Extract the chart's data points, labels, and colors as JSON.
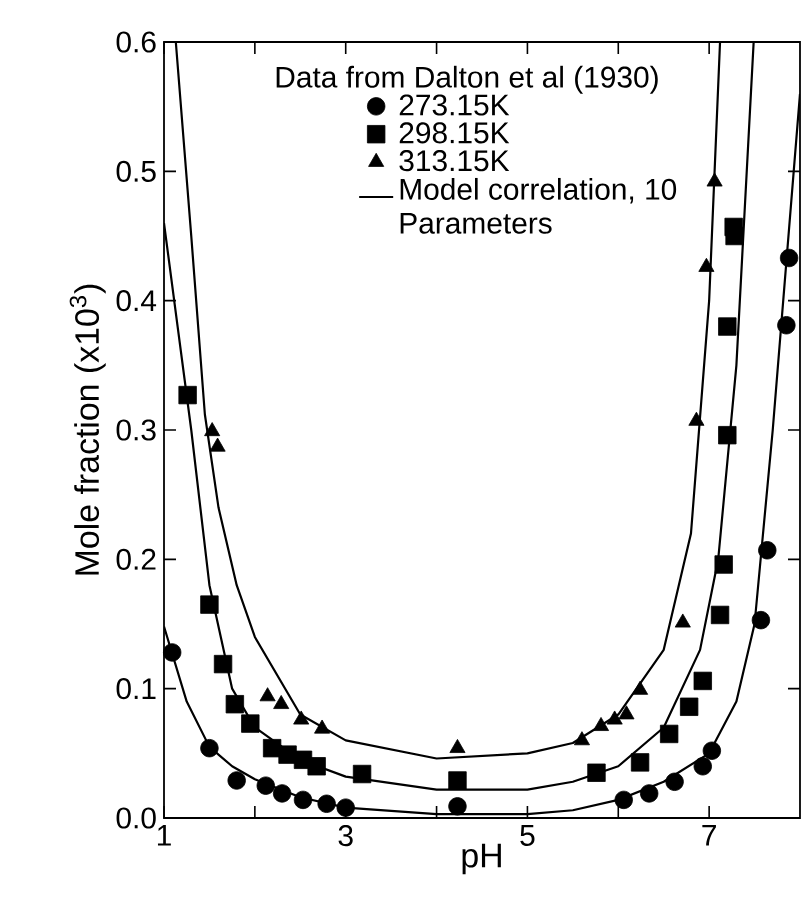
{
  "chart_data": {
    "type": "scatter",
    "xlabel": "pH",
    "ylabel": "Mole fraction (x10$^{3}$)",
    "legend_title": "Data from Dalton et al (1930)",
    "legend": "top",
    "line_style": "solid",
    "xlim": [
      1,
      8
    ],
    "ylim": [
      0,
      0.6
    ],
    "xticks": [
      1,
      {
        "value": 2,
        "label": null
      },
      3,
      {
        "value": 4,
        "label": null
      },
      5,
      {
        "value": 6,
        "label": null
      },
      7
    ],
    "yticks": [
      {
        "value": 0,
        "label": "0.0"
      },
      {
        "value": 0.1,
        "label": "0.1"
      },
      {
        "value": 0.2,
        "label": "0.2"
      },
      {
        "value": 0.3,
        "label": "0.3"
      },
      {
        "value": 0.4,
        "label": "0.4"
      },
      {
        "value": 0.5,
        "label": "0.5"
      },
      {
        "value": 0.6,
        "label": "0.6"
      }
    ],
    "series": [
      {
        "name": "273.15K",
        "type": "scatter",
        "marker": "circle",
        "color": "#000000",
        "x": [
          1.09,
          1.5,
          1.8,
          2.12,
          2.3,
          2.53,
          2.79,
          3.0,
          4.23,
          6.06,
          6.34,
          6.62,
          6.93,
          7.03,
          7.57,
          7.64,
          7.85,
          7.88
        ],
        "values": [
          0.128,
          0.054,
          0.029,
          0.025,
          0.019,
          0.014,
          0.011,
          0.008,
          0.009,
          0.014,
          0.019,
          0.028,
          0.04,
          0.052,
          0.153,
          0.207,
          0.381,
          0.433
        ]
      },
      {
        "name": "298.15K",
        "type": "scatter",
        "marker": "square",
        "color": "#000000",
        "x": [
          1.26,
          1.5,
          1.65,
          1.78,
          1.95,
          2.19,
          2.36,
          2.53,
          2.68,
          3.18,
          4.23,
          5.76,
          6.24,
          6.56,
          6.78,
          6.93,
          7.12,
          7.16,
          7.2,
          7.2,
          7.27,
          7.28
        ],
        "values": [
          0.327,
          0.165,
          0.119,
          0.088,
          0.073,
          0.054,
          0.049,
          0.045,
          0.04,
          0.034,
          0.029,
          0.035,
          0.043,
          0.065,
          0.086,
          0.106,
          0.157,
          0.196,
          0.296,
          0.38,
          0.457,
          0.45
        ]
      },
      {
        "name": "313.15K",
        "type": "scatter",
        "marker": "triangle",
        "color": "#000000",
        "x": [
          1.53,
          1.59,
          2.14,
          2.29,
          2.51,
          2.74,
          4.23,
          5.6,
          5.81,
          5.96,
          6.09,
          6.24,
          6.71,
          6.86,
          6.97,
          7.06
        ],
        "values": [
          0.299,
          0.287,
          0.094,
          0.088,
          0.076,
          0.069,
          0.054,
          0.06,
          0.071,
          0.076,
          0.08,
          0.099,
          0.151,
          0.307,
          0.426,
          0.492
        ]
      },
      {
        "name": "Model correlation, 10 Parameters",
        "type": "line",
        "marker": "none",
        "color": "#000000",
        "x": [
          1.0,
          1.25,
          1.5,
          1.75,
          2.0,
          2.5,
          3.0,
          4.0,
          5.0,
          5.5,
          6.0,
          6.5,
          7.0,
          7.3,
          7.5,
          7.7,
          7.85,
          8.0
        ],
        "values": [
          0.148,
          0.09,
          0.055,
          0.04,
          0.03,
          0.016,
          0.008,
          0.003,
          0.003,
          0.006,
          0.014,
          0.028,
          0.05,
          0.09,
          0.15,
          0.3,
          0.43,
          0.56
        ]
      },
      {
        "type": "line",
        "marker": "none",
        "color": "#000000",
        "x": [
          1.0,
          1.15,
          1.3,
          1.5,
          1.75,
          2.0,
          2.5,
          3.0,
          4.0,
          5.0,
          5.5,
          6.0,
          6.5,
          6.9,
          7.1,
          7.3,
          7.49
        ],
        "values": [
          0.46,
          0.38,
          0.3,
          0.18,
          0.1,
          0.07,
          0.045,
          0.032,
          0.022,
          0.022,
          0.028,
          0.04,
          0.07,
          0.13,
          0.2,
          0.35,
          0.6
        ]
      },
      {
        "type": "line",
        "marker": "none",
        "color": "#000000",
        "x": [
          1.13,
          1.3,
          1.45,
          1.6,
          1.8,
          2.0,
          2.5,
          3.0,
          4.0,
          5.0,
          5.5,
          6.0,
          6.5,
          6.8,
          7.0,
          7.12
        ],
        "values": [
          0.6,
          0.45,
          0.312,
          0.24,
          0.18,
          0.14,
          0.08,
          0.06,
          0.046,
          0.05,
          0.058,
          0.08,
          0.13,
          0.22,
          0.4,
          0.6
        ]
      }
    ]
  }
}
